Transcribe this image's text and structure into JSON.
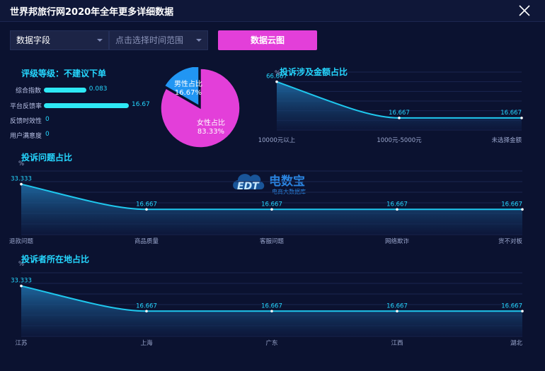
{
  "window": {
    "title": "世界邦旅行网2020年全年更多详细数据"
  },
  "toolbar": {
    "field_select": "数据字段",
    "time_select_placeholder": "点击选择时间范围",
    "cloud_button": "数据云图"
  },
  "rating": {
    "title": "评级等级：不建议下单",
    "rows": [
      {
        "label": "综合指数",
        "value": "0.083",
        "fraction": 0.083
      },
      {
        "label": "平台反馈率",
        "value": "16.67",
        "fraction": 0.1667
      },
      {
        "label": "反馈时效性",
        "value": "0",
        "fraction": 0
      },
      {
        "label": "用户满意度",
        "value": "0",
        "fraction": 0
      }
    ]
  },
  "pie": {
    "slices": [
      {
        "label": "男性占比",
        "value": 16.67,
        "display": "16.67%",
        "color": "#2196f3"
      },
      {
        "label": "女性占比",
        "value": 83.33,
        "display": "83.33%",
        "color": "#e33fd9"
      }
    ]
  },
  "watermark": {
    "name": "电数宝",
    "sub": "电商大数据库",
    "logo": "EDT"
  },
  "chart_data": [
    {
      "type": "area",
      "title": "投诉涉及金额占比",
      "unit": "%",
      "categories": [
        "10000元以上",
        "1000元-5000元",
        "未选择金额"
      ],
      "values": [
        66.667,
        16.667,
        16.667
      ],
      "labels": [
        "66.667",
        "16.667",
        "16.667"
      ]
    },
    {
      "type": "area",
      "title": "投诉问题占比",
      "unit": "%",
      "categories": [
        "退款问题",
        "商品质量",
        "客服问题",
        "网络欺诈",
        "货不对板"
      ],
      "values": [
        33.333,
        16.667,
        16.667,
        16.667,
        16.667
      ],
      "labels": [
        "33.333",
        "16.667",
        "16.667",
        "16.667",
        "16.667"
      ]
    },
    {
      "type": "area",
      "title": "投诉者所在地占比",
      "unit": "%",
      "categories": [
        "江苏",
        "上海",
        "广东",
        "江西",
        "湖北"
      ],
      "values": [
        33.333,
        16.667,
        16.667,
        16.667,
        16.667
      ],
      "labels": [
        "33.333",
        "16.667",
        "16.667",
        "16.667",
        "16.667"
      ]
    }
  ],
  "colors": {
    "accent": "#25d7ff",
    "line": "#1fc8ee",
    "button": "#e33fd9"
  }
}
